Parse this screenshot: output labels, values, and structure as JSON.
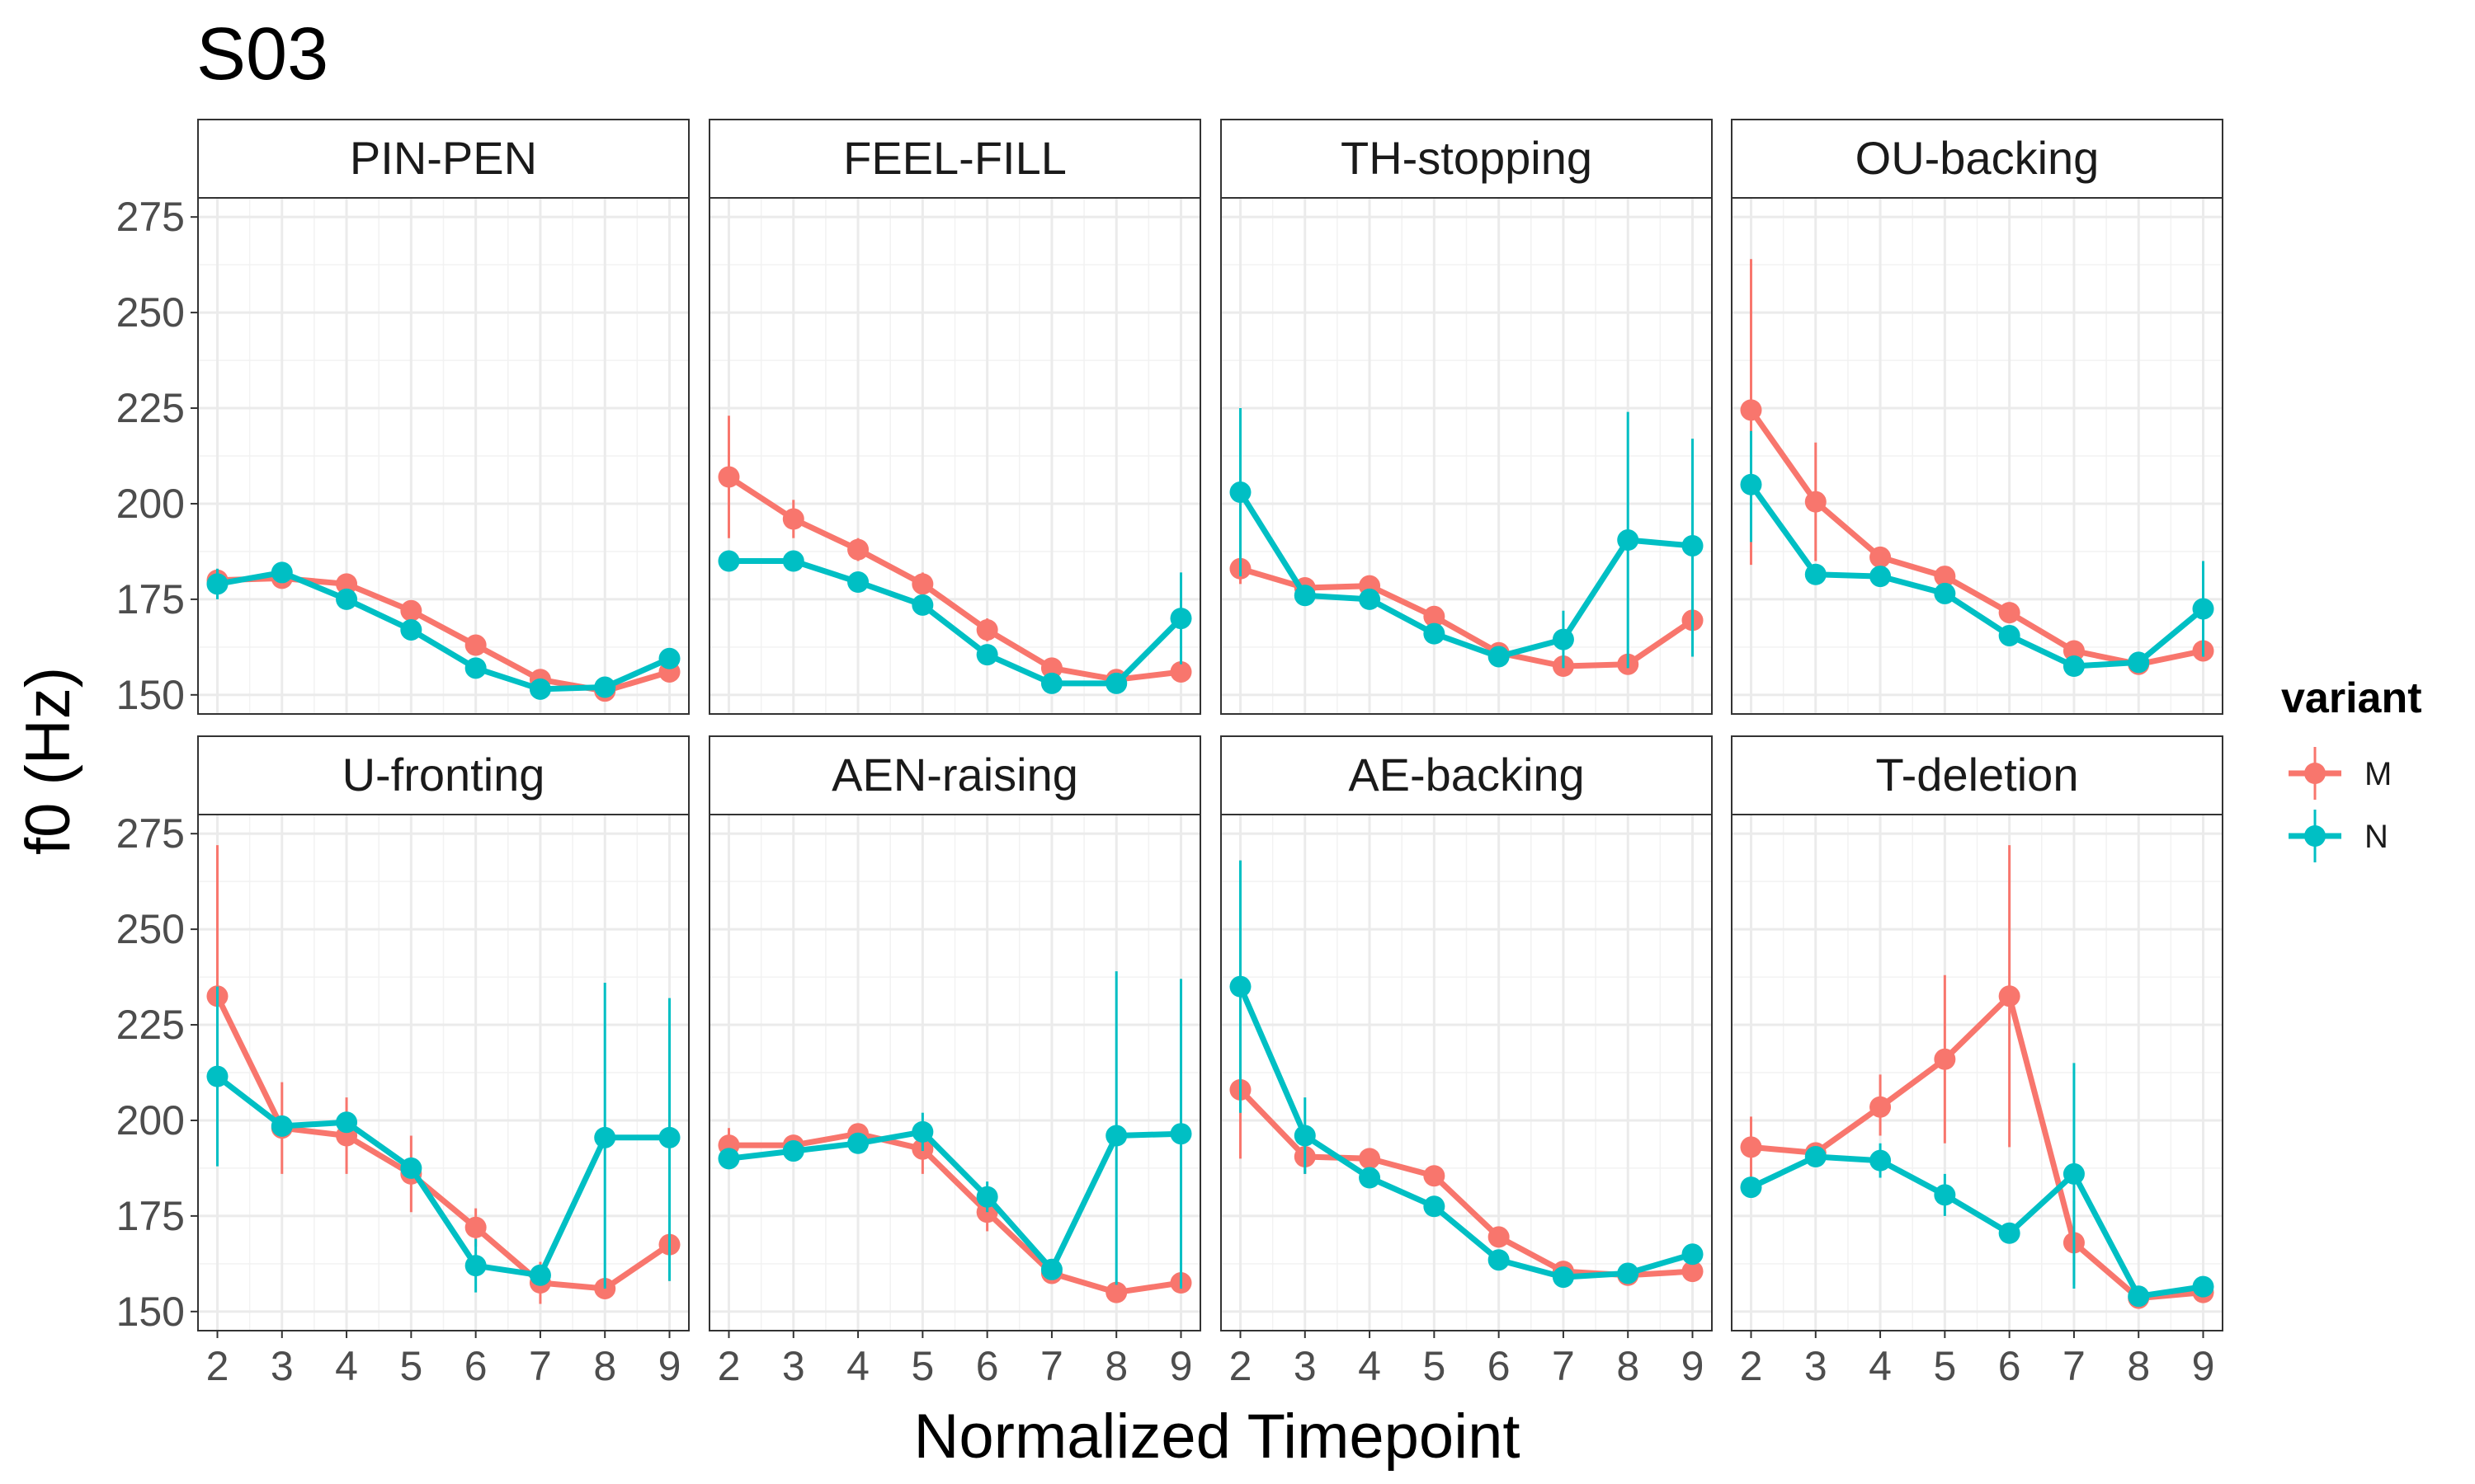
{
  "title": "S03",
  "xlabel": "Normalized Timepoint",
  "ylabel": "f0 (Hz)",
  "legend": {
    "title": "variant",
    "placement": "right",
    "items": [
      {
        "label": "M",
        "color": "#F8766D"
      },
      {
        "label": "N",
        "color": "#00BFC4"
      }
    ]
  },
  "chart_data": {
    "type": "line",
    "x": [
      2,
      3,
      4,
      5,
      6,
      7,
      8,
      9
    ],
    "xlim": [
      1.7,
      9.3
    ],
    "ylim": [
      145,
      280
    ],
    "yticks": [
      150,
      175,
      200,
      225,
      250,
      275
    ],
    "grid": true,
    "error_bars": true,
    "layout": "facets 2x4",
    "panels": [
      {
        "name": "PIN-PEN",
        "series": [
          {
            "name": "M",
            "values": [
              180,
              180.5,
              179,
              172,
              163,
              154,
              151,
              156
            ],
            "err": [
              [
                178,
                182
              ],
              [
                178.5,
                182.5
              ],
              [
                177,
                181
              ],
              [
                170,
                174
              ],
              [
                161,
                165
              ],
              [
                152,
                156
              ],
              [
                149,
                153
              ],
              [
                154,
                158
              ]
            ]
          },
          {
            "name": "N",
            "values": [
              179,
              182,
              175,
              167,
              157,
              151.5,
              152,
              159.5
            ],
            "err": [
              [
                175,
                183
              ],
              [
                180,
                184
              ],
              [
                173,
                177
              ],
              [
                165,
                169
              ],
              [
                155,
                159
              ],
              [
                149.5,
                153.5
              ],
              [
                150,
                154
              ],
              [
                157.5,
                161.5
              ]
            ]
          }
        ]
      },
      {
        "name": "FEEL-FILL",
        "series": [
          {
            "name": "M",
            "values": [
              207,
              196,
              188,
              179,
              167,
              157,
              154,
              156
            ],
            "err": [
              [
                191,
                223
              ],
              [
                191,
                201
              ],
              [
                185,
                191
              ],
              [
                176,
                182
              ],
              [
                164,
                170
              ],
              [
                155,
                159
              ],
              [
                152,
                156
              ],
              [
                154,
                158
              ]
            ]
          },
          {
            "name": "N",
            "values": [
              185,
              185,
              179.5,
              173.5,
              160.5,
              153,
              153,
              170
            ],
            "err": [
              [
                183,
                187
              ],
              [
                183,
                187
              ],
              [
                177.5,
                181.5
              ],
              [
                171.5,
                175.5
              ],
              [
                158.5,
                162.5
              ],
              [
                151,
                155
              ],
              [
                151,
                155
              ],
              [
                158,
                182
              ]
            ]
          }
        ]
      },
      {
        "name": "TH-stopping",
        "series": [
          {
            "name": "M",
            "values": [
              183,
              178,
              178.5,
              170.5,
              161,
              157.5,
              158,
              169.5
            ],
            "err": [
              [
                179,
                187
              ],
              [
                176,
                180
              ],
              [
                176.5,
                180.5
              ],
              [
                168.5,
                172.5
              ],
              [
                159,
                163
              ],
              [
                155.5,
                159.5
              ],
              [
                156,
                160
              ],
              [
                161,
                178
              ]
            ]
          },
          {
            "name": "N",
            "values": [
              203,
              176,
              175,
              166,
              160,
              164.5,
              190.5,
              189
            ],
            "err": [
              [
                181,
                225
              ],
              [
                174,
                178
              ],
              [
                173,
                177
              ],
              [
                164,
                168
              ],
              [
                158,
                162
              ],
              [
                157,
                172
              ],
              [
                157,
                224
              ],
              [
                160,
                217
              ]
            ]
          }
        ]
      },
      {
        "name": "OU-backing",
        "series": [
          {
            "name": "M",
            "values": [
              224.5,
              200.5,
              186,
              181,
              171.5,
              161.5,
              158,
              161.5
            ],
            "err": [
              [
                184,
                264
              ],
              [
                185,
                216
              ],
              [
                184,
                188
              ],
              [
                179,
                183
              ],
              [
                169.5,
                173.5
              ],
              [
                159.5,
                163.5
              ],
              [
                156,
                160
              ],
              [
                159.5,
                163.5
              ]
            ]
          },
          {
            "name": "N",
            "values": [
              205,
              181.5,
              181,
              176.5,
              165.5,
              157.5,
              158.5,
              172.5
            ],
            "err": [
              [
                190,
                219
              ],
              [
                179.5,
                183.5
              ],
              [
                179,
                183
              ],
              [
                174.5,
                178.5
              ],
              [
                163.5,
                167.5
              ],
              [
                155.5,
                159.5
              ],
              [
                156.5,
                160.5
              ],
              [
                160,
                185
              ]
            ]
          }
        ]
      },
      {
        "name": "U-fronting",
        "series": [
          {
            "name": "M",
            "values": [
              232.5,
              198,
              196,
              186,
              172,
              157.5,
              156,
              167.5
            ],
            "err": [
              [
                193,
                272
              ],
              [
                186,
                210
              ],
              [
                186,
                206
              ],
              [
                176,
                196
              ],
              [
                167,
                177
              ],
              [
                152,
                163
              ],
              [
                154,
                158
              ],
              [
                158,
                177
              ]
            ]
          },
          {
            "name": "N",
            "values": [
              211.5,
              198.5,
              199.5,
              187.5,
              162,
              159.5,
              195.5,
              195.5
            ],
            "err": [
              [
                188,
                235
              ],
              [
                196.5,
                200.5
              ],
              [
                197.5,
                201.5
              ],
              [
                185.5,
                189.5
              ],
              [
                155,
                169
              ],
              [
                157.5,
                161.5
              ],
              [
                156,
                236
              ],
              [
                158,
                232
              ]
            ]
          }
        ]
      },
      {
        "name": "AEN-raising",
        "series": [
          {
            "name": "M",
            "values": [
              193.5,
              193.5,
              196.5,
              192.5,
              176,
              160,
              155,
              157.5
            ],
            "err": [
              [
                189,
                198
              ],
              [
                191.5,
                195.5
              ],
              [
                194.5,
                198.5
              ],
              [
                186,
                199
              ],
              [
                171,
                181
              ],
              [
                158,
                162
              ],
              [
                153,
                157
              ],
              [
                155.5,
                159.5
              ]
            ]
          },
          {
            "name": "N",
            "values": [
              190,
              192,
              194,
              197,
              180,
              161,
              196,
              196.5
            ],
            "err": [
              [
                188,
                192
              ],
              [
                190,
                194
              ],
              [
                192,
                196
              ],
              [
                192,
                202
              ],
              [
                176,
                184
              ],
              [
                159,
                163
              ],
              [
                157,
                239
              ],
              [
                156,
                237
              ]
            ]
          }
        ]
      },
      {
        "name": "AE-backing",
        "series": [
          {
            "name": "M",
            "values": [
              208,
              190.5,
              190,
              185.5,
              169.5,
              160.5,
              159.5,
              160.5
            ],
            "err": [
              [
                190,
                226
              ],
              [
                186,
                195
              ],
              [
                188,
                192
              ],
              [
                183.5,
                187.5
              ],
              [
                167.5,
                171.5
              ],
              [
                158.5,
                162.5
              ],
              [
                157.5,
                161.5
              ],
              [
                158.5,
                162.5
              ]
            ]
          },
          {
            "name": "N",
            "values": [
              235,
              196,
              185,
              177.5,
              163.5,
              159,
              160,
              165
            ],
            "err": [
              [
                202,
                268
              ],
              [
                186,
                206
              ],
              [
                183,
                187
              ],
              [
                175.5,
                179.5
              ],
              [
                161.5,
                165.5
              ],
              [
                157,
                161
              ],
              [
                158,
                162
              ],
              [
                163,
                167
              ]
            ]
          }
        ]
      },
      {
        "name": "T-deletion",
        "series": [
          {
            "name": "M",
            "values": [
              193,
              191.5,
              203.5,
              216,
              232.5,
              168,
              153.5,
              155
            ],
            "err": [
              [
                185,
                201
              ],
              [
                189.5,
                193.5
              ],
              [
                196,
                212
              ],
              [
                194,
                238
              ],
              [
                193,
                272
              ],
              [
                157,
                179
              ],
              [
                151.5,
                155.5
              ],
              [
                153,
                157
              ]
            ]
          },
          {
            "name": "N",
            "values": [
              182.5,
              190.5,
              189.5,
              180.5,
              170.5,
              186,
              154,
              156.5
            ],
            "err": [
              [
                180.5,
                184.5
              ],
              [
                188.5,
                192.5
              ],
              [
                185,
                194
              ],
              [
                175,
                186
              ],
              [
                168.5,
                172.5
              ],
              [
                156,
                215
              ],
              [
                152,
                156
              ],
              [
                154.5,
                158.5
              ]
            ]
          }
        ]
      }
    ]
  }
}
